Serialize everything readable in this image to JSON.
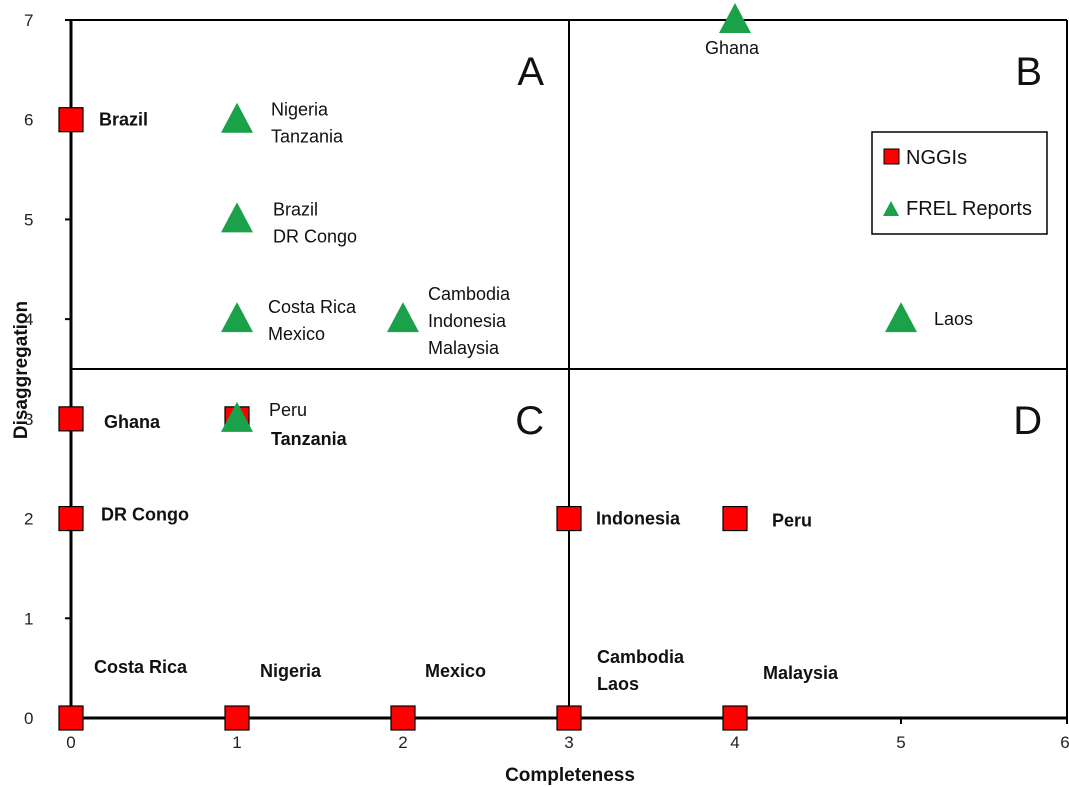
{
  "chart_data": {
    "type": "scatter",
    "xlabel": "Completeness",
    "ylabel": "Disaggregation",
    "xlim": [
      0,
      6
    ],
    "ylim": [
      0,
      7
    ],
    "x_ticks": [
      "0",
      "1",
      "2",
      "3",
      "4",
      "5",
      "6"
    ],
    "y_ticks": [
      "0",
      "1",
      "2",
      "3",
      "4",
      "5",
      "6",
      "7"
    ],
    "grid": false,
    "legend_position": "upper-right",
    "quadrant_dividers": {
      "x": 3,
      "y": 3.5
    },
    "quadrants": [
      {
        "label": "A",
        "x": 2.85,
        "y": 6.35
      },
      {
        "label": "B",
        "x": 5.85,
        "y": 6.35
      },
      {
        "label": "C",
        "x": 2.85,
        "y": 2.85
      },
      {
        "label": "D",
        "x": 5.85,
        "y": 2.85
      }
    ],
    "series": [
      {
        "name": "NGGIs",
        "marker": "square",
        "color": "#ff0000",
        "points": [
          {
            "x": 0,
            "y": 6,
            "labels": [
              "Brazil"
            ]
          },
          {
            "x": 0,
            "y": 3,
            "labels": [
              "Ghana"
            ]
          },
          {
            "x": 1,
            "y": 3,
            "labels": [
              "Tanzania"
            ]
          },
          {
            "x": 0,
            "y": 2,
            "labels": [
              "DR Congo"
            ]
          },
          {
            "x": 3,
            "y": 2,
            "labels": [
              "Indonesia"
            ]
          },
          {
            "x": 4,
            "y": 2,
            "labels": [
              "Peru"
            ]
          },
          {
            "x": 0,
            "y": 0,
            "labels": [
              "Costa Rica"
            ]
          },
          {
            "x": 1,
            "y": 0,
            "labels": [
              "Nigeria"
            ]
          },
          {
            "x": 2,
            "y": 0,
            "labels": [
              "Mexico"
            ]
          },
          {
            "x": 3,
            "y": 0,
            "labels": [
              "Cambodia",
              "Laos"
            ]
          },
          {
            "x": 4,
            "y": 0,
            "labels": [
              "Malaysia"
            ]
          }
        ]
      },
      {
        "name": "FREL Reports",
        "marker": "triangle",
        "color": "#1aa14a",
        "points": [
          {
            "x": 4,
            "y": 7,
            "labels": [
              "Ghana"
            ]
          },
          {
            "x": 1,
            "y": 6,
            "labels": [
              "Nigeria",
              "Tanzania"
            ]
          },
          {
            "x": 1,
            "y": 5,
            "labels": [
              "Brazil",
              "DR Congo"
            ]
          },
          {
            "x": 1,
            "y": 4,
            "labels": [
              "Costa Rica",
              "Mexico"
            ]
          },
          {
            "x": 2,
            "y": 4,
            "labels": [
              "Cambodia",
              "Indonesia",
              "Malaysia"
            ]
          },
          {
            "x": 5,
            "y": 4,
            "labels": [
              "Laos"
            ]
          },
          {
            "x": 1,
            "y": 3,
            "labels": [
              "Peru"
            ]
          }
        ]
      }
    ]
  }
}
